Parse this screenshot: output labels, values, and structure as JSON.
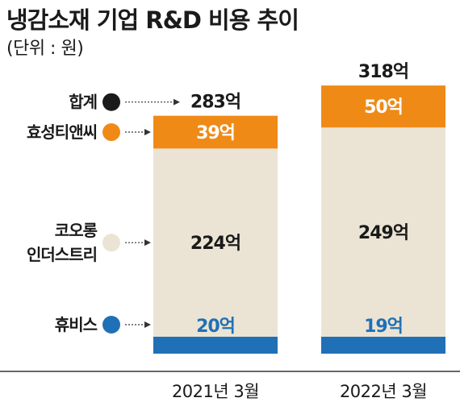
{
  "title": "냉감소재 기업 R&D 비용 추이",
  "unit_label": "(단위 : 원)",
  "colors": {
    "total": "#1a1a1a",
    "hyosung": "#ef8a17",
    "kolon": "#ebe4d4",
    "huvis": "#1f70b6",
    "axis": "#333333",
    "value_text_dark": "#1a1a1a",
    "value_text_light": "#ffffff",
    "huvis_value_text": "#1f70b6"
  },
  "chart_data": {
    "type": "bar",
    "stacked": true,
    "title": "냉감소재 기업 R&D 비용 추이",
    "unit": "(단위 : 원)",
    "categories": [
      "2021년 3월",
      "2022년 3월"
    ],
    "series": [
      {
        "name": "휴비스",
        "key": "huvis",
        "values": [
          20,
          19
        ],
        "labels": [
          "20억",
          "19억"
        ]
      },
      {
        "name": "코오롱인더스트리",
        "key": "kolon",
        "values": [
          224,
          249
        ],
        "labels": [
          "224억",
          "249억"
        ]
      },
      {
        "name": "효성티앤씨",
        "key": "hyosung",
        "values": [
          39,
          50
        ],
        "labels": [
          "39억",
          "50억"
        ]
      }
    ],
    "totals": {
      "name": "합계",
      "values": [
        283,
        318
      ],
      "labels": [
        "283억",
        "318억"
      ]
    },
    "legend_position": "left"
  },
  "legend": [
    {
      "key": "total",
      "lines": [
        "합계"
      ]
    },
    {
      "key": "hyosung",
      "lines": [
        "효성티앤씨"
      ]
    },
    {
      "key": "kolon",
      "lines": [
        "코오롱",
        "인더스트리"
      ]
    },
    {
      "key": "huvis",
      "lines": [
        "휴비스"
      ]
    }
  ]
}
